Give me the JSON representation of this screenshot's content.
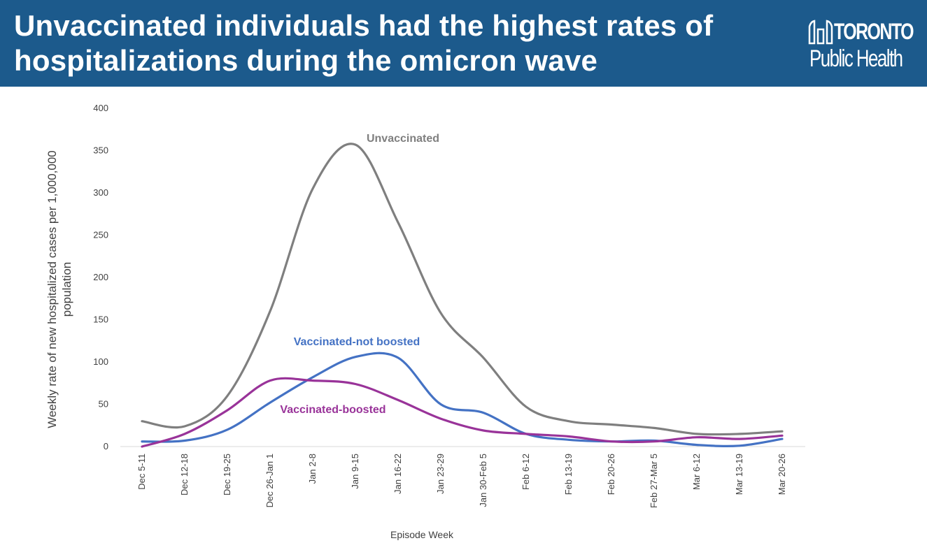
{
  "header": {
    "title": "Unvaccinated individuals had the highest rates of hospitalizations during the omicron wave",
    "logo_line1": "TORONTO",
    "logo_line2": "Public Health"
  },
  "chart_data": {
    "type": "line",
    "xlabel": "Episode Week",
    "ylabel": "Weekly rate of new hospitalized cases per 1,000,000 population",
    "ylim": [
      0,
      400
    ],
    "yticks": [
      0,
      50,
      100,
      150,
      200,
      250,
      300,
      350,
      400
    ],
    "grid": false,
    "categories": [
      "Dec 5-11",
      "Dec 12-18",
      "Dec 19-25",
      "Dec 26-Jan 1",
      "Jan 2-8",
      "Jan 9-15",
      "Jan 16-22",
      "Jan 23-29",
      "Jan 30-Feb 5",
      "Feb 6-12",
      "Feb 13-19",
      "Feb 20-26",
      "Feb 27-Mar 5",
      "Mar 6-12",
      "Mar 13-19",
      "Mar 20-26"
    ],
    "series": [
      {
        "name": "Unvaccinated",
        "color": "#7f7f7f",
        "values": [
          30,
          24,
          60,
          160,
          305,
          357,
          265,
          158,
          105,
          47,
          30,
          26,
          22,
          15,
          15,
          18
        ]
      },
      {
        "name": "Vaccinated-not boosted",
        "color": "#4472c4",
        "values": [
          6,
          7,
          20,
          52,
          82,
          106,
          105,
          50,
          40,
          15,
          8,
          6,
          7,
          2,
          1,
          9
        ]
      },
      {
        "name": "Vaccinated-boosted",
        "color": "#993399",
        "values": [
          0,
          15,
          43,
          78,
          78,
          74,
          55,
          33,
          19,
          15,
          12,
          6,
          6,
          11,
          9,
          13
        ]
      }
    ]
  }
}
